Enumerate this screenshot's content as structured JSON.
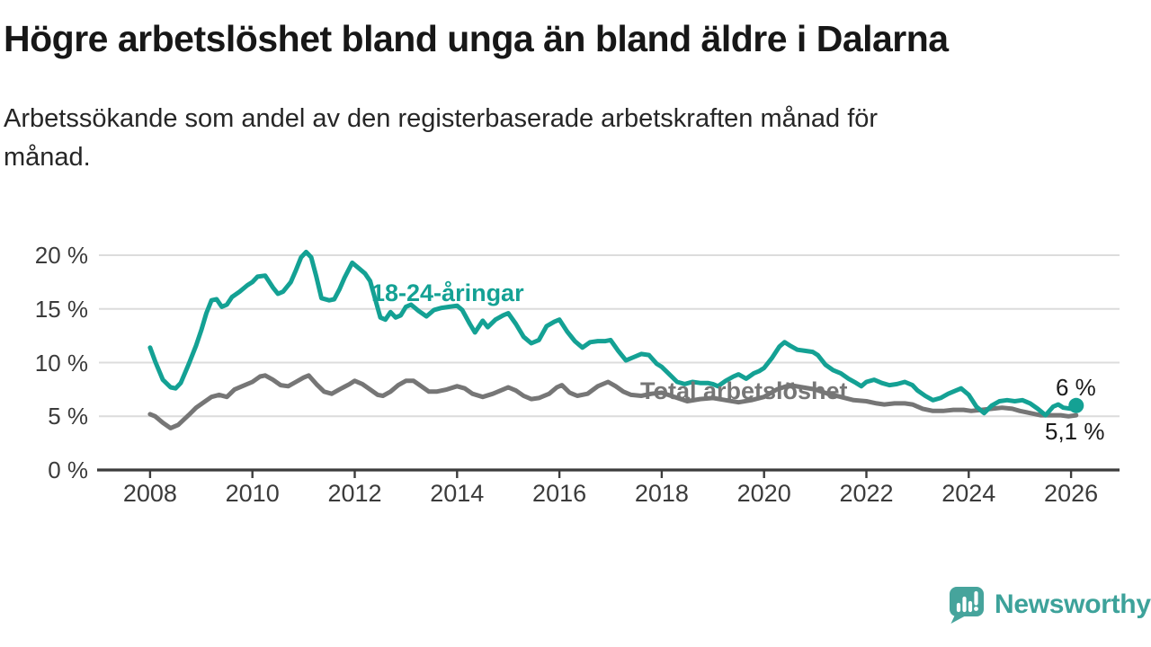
{
  "header": {
    "title": "Högre arbetslöshet bland unga än bland äldre i Dalarna",
    "subtitle": "Arbetssökande som andel av den registerbaserade arbetskraften månad för månad."
  },
  "chart_data": {
    "type": "line",
    "title": "Högre arbetslöshet bland unga än bland äldre i Dalarna",
    "subtitle": "Arbetssökande som andel av den registerbaserade arbetskraften månad för månad.",
    "unit": "%",
    "grid": "horizontal",
    "legend_position": "inline-labels",
    "x_axis": {
      "range": [
        2007,
        2027
      ],
      "ticks": [
        2008,
        2010,
        2012,
        2014,
        2016,
        2018,
        2020,
        2022,
        2024,
        2026
      ]
    },
    "y_axis": {
      "range": [
        0,
        21
      ],
      "ticks": [
        {
          "value": 0,
          "label": "0 %"
        },
        {
          "value": 5,
          "label": "5 %"
        },
        {
          "value": 10,
          "label": "10 %"
        },
        {
          "value": 15,
          "label": "15 %"
        },
        {
          "value": 20,
          "label": "20 %"
        }
      ]
    },
    "series": [
      {
        "id": "young",
        "name": "18-24-åringar",
        "label_text": "18-24-åringar",
        "color": "#14a194",
        "end_label": "6 %",
        "end_value": 6.0,
        "end_dot": true,
        "points": [
          [
            2008.0,
            11.4
          ],
          [
            2008.1,
            10.1
          ],
          [
            2008.25,
            8.4
          ],
          [
            2008.4,
            7.7
          ],
          [
            2008.5,
            7.6
          ],
          [
            2008.6,
            8.1
          ],
          [
            2008.75,
            9.8
          ],
          [
            2008.9,
            11.6
          ],
          [
            2009.0,
            13.0
          ],
          [
            2009.1,
            14.6
          ],
          [
            2009.2,
            15.8
          ],
          [
            2009.3,
            15.9
          ],
          [
            2009.4,
            15.2
          ],
          [
            2009.5,
            15.4
          ],
          [
            2009.6,
            16.1
          ],
          [
            2009.75,
            16.6
          ],
          [
            2009.9,
            17.2
          ],
          [
            2010.0,
            17.5
          ],
          [
            2010.1,
            18.0
          ],
          [
            2010.25,
            18.1
          ],
          [
            2010.4,
            17.0
          ],
          [
            2010.5,
            16.4
          ],
          [
            2010.6,
            16.6
          ],
          [
            2010.75,
            17.5
          ],
          [
            2010.85,
            18.6
          ],
          [
            2010.95,
            19.8
          ],
          [
            2011.05,
            20.3
          ],
          [
            2011.15,
            19.8
          ],
          [
            2011.25,
            18.0
          ],
          [
            2011.35,
            16.0
          ],
          [
            2011.5,
            15.8
          ],
          [
            2011.6,
            15.9
          ],
          [
            2011.7,
            16.8
          ],
          [
            2011.8,
            17.9
          ],
          [
            2011.95,
            19.3
          ],
          [
            2012.05,
            18.9
          ],
          [
            2012.2,
            18.3
          ],
          [
            2012.3,
            17.6
          ],
          [
            2012.4,
            15.9
          ],
          [
            2012.5,
            14.2
          ],
          [
            2012.6,
            14.0
          ],
          [
            2012.7,
            14.7
          ],
          [
            2012.8,
            14.2
          ],
          [
            2012.9,
            14.4
          ],
          [
            2013.0,
            15.2
          ],
          [
            2013.1,
            15.4
          ],
          [
            2013.25,
            14.8
          ],
          [
            2013.4,
            14.3
          ],
          [
            2013.55,
            14.9
          ],
          [
            2013.7,
            15.1
          ],
          [
            2013.85,
            15.2
          ],
          [
            2014.0,
            15.3
          ],
          [
            2014.1,
            14.9
          ],
          [
            2014.25,
            13.6
          ],
          [
            2014.35,
            12.8
          ],
          [
            2014.5,
            13.9
          ],
          [
            2014.6,
            13.3
          ],
          [
            2014.75,
            14.0
          ],
          [
            2014.9,
            14.4
          ],
          [
            2015.0,
            14.6
          ],
          [
            2015.15,
            13.6
          ],
          [
            2015.3,
            12.4
          ],
          [
            2015.45,
            11.8
          ],
          [
            2015.6,
            12.1
          ],
          [
            2015.75,
            13.4
          ],
          [
            2015.9,
            13.8
          ],
          [
            2016.0,
            14.0
          ],
          [
            2016.15,
            12.9
          ],
          [
            2016.3,
            12.0
          ],
          [
            2016.45,
            11.4
          ],
          [
            2016.6,
            11.9
          ],
          [
            2016.75,
            12.0
          ],
          [
            2016.9,
            12.0
          ],
          [
            2017.0,
            12.1
          ],
          [
            2017.15,
            11.1
          ],
          [
            2017.3,
            10.2
          ],
          [
            2017.45,
            10.5
          ],
          [
            2017.6,
            10.8
          ],
          [
            2017.75,
            10.7
          ],
          [
            2017.9,
            9.9
          ],
          [
            2018.0,
            9.6
          ],
          [
            2018.15,
            8.9
          ],
          [
            2018.3,
            8.2
          ],
          [
            2018.45,
            8.0
          ],
          [
            2018.6,
            8.2
          ],
          [
            2018.75,
            8.1
          ],
          [
            2018.9,
            8.1
          ],
          [
            2019.0,
            8.0
          ],
          [
            2019.1,
            7.8
          ],
          [
            2019.25,
            8.3
          ],
          [
            2019.4,
            8.7
          ],
          [
            2019.5,
            8.9
          ],
          [
            2019.65,
            8.5
          ],
          [
            2019.8,
            9.0
          ],
          [
            2019.9,
            9.2
          ],
          [
            2020.0,
            9.5
          ],
          [
            2020.15,
            10.4
          ],
          [
            2020.3,
            11.5
          ],
          [
            2020.4,
            11.9
          ],
          [
            2020.5,
            11.6
          ],
          [
            2020.65,
            11.2
          ],
          [
            2020.8,
            11.1
          ],
          [
            2020.95,
            11.0
          ],
          [
            2021.05,
            10.7
          ],
          [
            2021.2,
            9.8
          ],
          [
            2021.35,
            9.3
          ],
          [
            2021.5,
            9.0
          ],
          [
            2021.65,
            8.5
          ],
          [
            2021.8,
            8.1
          ],
          [
            2021.9,
            7.8
          ],
          [
            2022.0,
            8.2
          ],
          [
            2022.15,
            8.4
          ],
          [
            2022.3,
            8.1
          ],
          [
            2022.45,
            7.9
          ],
          [
            2022.6,
            8.0
          ],
          [
            2022.75,
            8.2
          ],
          [
            2022.9,
            7.9
          ],
          [
            2023.0,
            7.4
          ],
          [
            2023.15,
            6.9
          ],
          [
            2023.3,
            6.5
          ],
          [
            2023.45,
            6.7
          ],
          [
            2023.6,
            7.1
          ],
          [
            2023.75,
            7.4
          ],
          [
            2023.85,
            7.6
          ],
          [
            2024.0,
            7.0
          ],
          [
            2024.15,
            5.9
          ],
          [
            2024.3,
            5.3
          ],
          [
            2024.45,
            6.0
          ],
          [
            2024.6,
            6.4
          ],
          [
            2024.75,
            6.5
          ],
          [
            2024.9,
            6.4
          ],
          [
            2025.05,
            6.5
          ],
          [
            2025.2,
            6.2
          ],
          [
            2025.35,
            5.7
          ],
          [
            2025.5,
            5.1
          ],
          [
            2025.65,
            5.9
          ],
          [
            2025.75,
            6.1
          ],
          [
            2025.85,
            5.8
          ],
          [
            2026.0,
            5.7
          ],
          [
            2026.1,
            6.0
          ]
        ]
      },
      {
        "id": "total",
        "name": "Total arbetslöshet",
        "label_text": "Total arbetslöshet",
        "color": "#767676",
        "end_label": "5,1 %",
        "end_value": 5.1,
        "end_dot": false,
        "points": [
          [
            2008.0,
            5.2
          ],
          [
            2008.1,
            5.0
          ],
          [
            2008.25,
            4.4
          ],
          [
            2008.4,
            3.9
          ],
          [
            2008.55,
            4.2
          ],
          [
            2008.75,
            5.1
          ],
          [
            2008.9,
            5.8
          ],
          [
            2009.05,
            6.3
          ],
          [
            2009.2,
            6.8
          ],
          [
            2009.35,
            7.0
          ],
          [
            2009.5,
            6.8
          ],
          [
            2009.65,
            7.5
          ],
          [
            2009.8,
            7.8
          ],
          [
            2010.0,
            8.2
          ],
          [
            2010.15,
            8.7
          ],
          [
            2010.25,
            8.8
          ],
          [
            2010.4,
            8.4
          ],
          [
            2010.55,
            7.9
          ],
          [
            2010.7,
            7.8
          ],
          [
            2010.85,
            8.2
          ],
          [
            2011.0,
            8.6
          ],
          [
            2011.1,
            8.8
          ],
          [
            2011.25,
            8.0
          ],
          [
            2011.4,
            7.3
          ],
          [
            2011.55,
            7.1
          ],
          [
            2011.7,
            7.5
          ],
          [
            2011.9,
            8.0
          ],
          [
            2012.0,
            8.3
          ],
          [
            2012.15,
            8.0
          ],
          [
            2012.3,
            7.5
          ],
          [
            2012.45,
            7.0
          ],
          [
            2012.55,
            6.9
          ],
          [
            2012.7,
            7.3
          ],
          [
            2012.85,
            7.9
          ],
          [
            2013.0,
            8.3
          ],
          [
            2013.15,
            8.3
          ],
          [
            2013.3,
            7.8
          ],
          [
            2013.45,
            7.3
          ],
          [
            2013.6,
            7.3
          ],
          [
            2013.8,
            7.5
          ],
          [
            2014.0,
            7.8
          ],
          [
            2014.15,
            7.6
          ],
          [
            2014.3,
            7.1
          ],
          [
            2014.5,
            6.8
          ],
          [
            2014.7,
            7.1
          ],
          [
            2014.9,
            7.5
          ],
          [
            2015.0,
            7.7
          ],
          [
            2015.15,
            7.4
          ],
          [
            2015.3,
            6.9
          ],
          [
            2015.45,
            6.6
          ],
          [
            2015.6,
            6.7
          ],
          [
            2015.8,
            7.1
          ],
          [
            2015.95,
            7.7
          ],
          [
            2016.05,
            7.9
          ],
          [
            2016.2,
            7.2
          ],
          [
            2016.35,
            6.9
          ],
          [
            2016.55,
            7.1
          ],
          [
            2016.75,
            7.8
          ],
          [
            2016.95,
            8.2
          ],
          [
            2017.1,
            7.8
          ],
          [
            2017.25,
            7.3
          ],
          [
            2017.4,
            7.0
          ],
          [
            2017.6,
            6.9
          ],
          [
            2017.8,
            7.1
          ],
          [
            2018.0,
            7.2
          ],
          [
            2018.25,
            6.8
          ],
          [
            2018.5,
            6.4
          ],
          [
            2018.75,
            6.6
          ],
          [
            2019.0,
            6.7
          ],
          [
            2019.25,
            6.5
          ],
          [
            2019.5,
            6.3
          ],
          [
            2019.75,
            6.5
          ],
          [
            2020.0,
            6.8
          ],
          [
            2020.25,
            7.5
          ],
          [
            2020.5,
            7.9
          ],
          [
            2020.75,
            7.7
          ],
          [
            2021.0,
            7.5
          ],
          [
            2021.25,
            7.1
          ],
          [
            2021.5,
            6.8
          ],
          [
            2021.75,
            6.5
          ],
          [
            2022.0,
            6.4
          ],
          [
            2022.2,
            6.2
          ],
          [
            2022.35,
            6.1
          ],
          [
            2022.55,
            6.2
          ],
          [
            2022.75,
            6.2
          ],
          [
            2022.9,
            6.1
          ],
          [
            2023.1,
            5.7
          ],
          [
            2023.3,
            5.5
          ],
          [
            2023.5,
            5.5
          ],
          [
            2023.7,
            5.6
          ],
          [
            2023.9,
            5.6
          ],
          [
            2024.05,
            5.5
          ],
          [
            2024.25,
            5.6
          ],
          [
            2024.45,
            5.7
          ],
          [
            2024.65,
            5.8
          ],
          [
            2024.85,
            5.7
          ],
          [
            2025.0,
            5.5
          ],
          [
            2025.2,
            5.3
          ],
          [
            2025.4,
            5.1
          ],
          [
            2025.6,
            5.1
          ],
          [
            2025.8,
            5.1
          ],
          [
            2025.95,
            5.0
          ],
          [
            2026.1,
            5.1
          ]
        ]
      }
    ]
  },
  "footer": {
    "brand": "Newsworthy"
  },
  "colors": {
    "young_line": "#14a194",
    "total_line": "#767676",
    "brand_teal": "#46a49c",
    "brand_text": "#3da29a",
    "grid": "#dcdcdc",
    "axis": "#3c3c3c"
  }
}
